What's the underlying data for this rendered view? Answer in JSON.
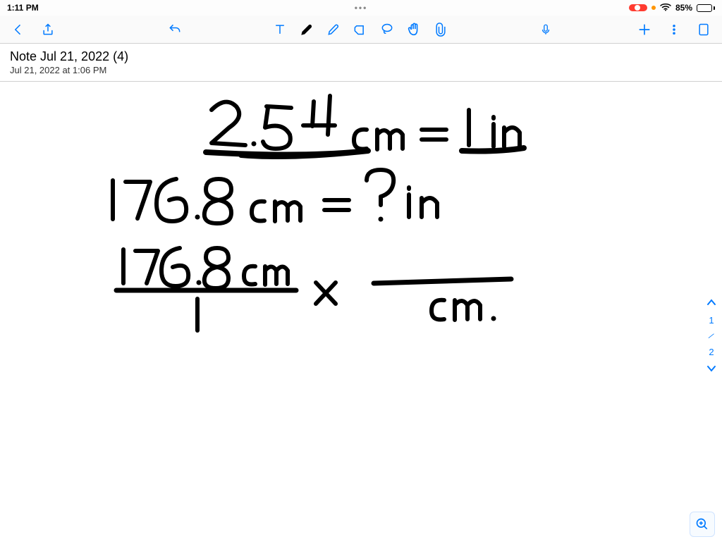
{
  "status": {
    "time": "1:11 PM",
    "ellipsis": "•••",
    "recording": true,
    "battery_pct": "85%",
    "battery_fill_pct": 85
  },
  "note": {
    "title": "Note Jul 21, 2022 (4)",
    "subtitle": "Jul 21, 2022 at 1:06 PM"
  },
  "pager": {
    "current": "1",
    "total": "2"
  },
  "colors": {
    "accent": "#007aff",
    "ink": "#000000",
    "border": "#d0d0d0",
    "record": "#ff3b30",
    "orange": "#ff9500"
  },
  "handwriting": {
    "stroke_color": "#000000",
    "stroke_width": 6,
    "lines": [
      "2.54 cm = 1 in",
      "176.8 cm = ? in",
      "176.8 cm / 1  ×  ____ / cm."
    ]
  }
}
